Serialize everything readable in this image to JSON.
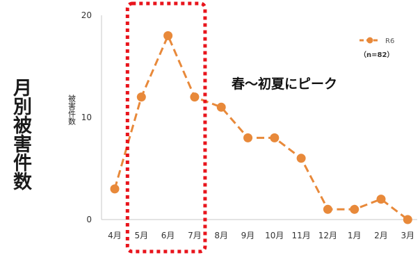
{
  "side_label": "月別被害件数",
  "annotation": "春～初夏にピーク",
  "highlight": {
    "start_category": "5月",
    "end_category": "7月",
    "color": "#e8141c"
  },
  "legend": {
    "series_label": "R6",
    "n_label": "（n=82）"
  },
  "chart_data": {
    "type": "line",
    "categories": [
      "4月",
      "5月",
      "6月",
      "7月",
      "8月",
      "9月",
      "10月",
      "11月",
      "12月",
      "1月",
      "2月",
      "3月"
    ],
    "series": [
      {
        "name": "R6",
        "values": [
          3,
          12,
          18,
          12,
          11,
          8,
          8,
          6,
          1,
          1,
          2,
          0
        ],
        "color": "#e8893a"
      }
    ],
    "ylabel": "被害件数",
    "ylim": [
      0,
      20
    ],
    "yticks": [
      0,
      10,
      20
    ],
    "grid": false,
    "legend_position": "top-right"
  }
}
